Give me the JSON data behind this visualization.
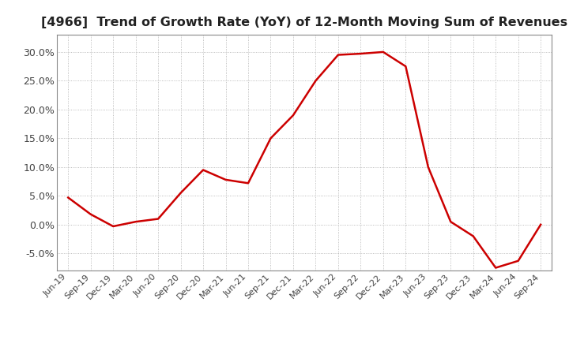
{
  "title": "[4966]  Trend of Growth Rate (YoY) of 12-Month Moving Sum of Revenues",
  "title_fontsize": 11.5,
  "line_color": "#cc0000",
  "background_color": "#ffffff",
  "grid_color": "#aaaaaa",
  "ylim": [
    -0.08,
    0.33
  ],
  "yticks": [
    -0.05,
    0.0,
    0.05,
    0.1,
    0.15,
    0.2,
    0.25,
    0.3
  ],
  "x_labels": [
    "Jun-19",
    "Sep-19",
    "Dec-19",
    "Mar-20",
    "Jun-20",
    "Sep-20",
    "Dec-20",
    "Mar-21",
    "Jun-21",
    "Sep-21",
    "Dec-21",
    "Mar-22",
    "Jun-22",
    "Sep-22",
    "Dec-22",
    "Mar-23",
    "Jun-23",
    "Sep-23",
    "Dec-23",
    "Mar-24",
    "Jun-24",
    "Sep-24"
  ],
  "y_values": [
    0.047,
    0.018,
    -0.003,
    0.005,
    0.01,
    0.055,
    0.095,
    0.078,
    0.072,
    0.15,
    0.19,
    0.25,
    0.295,
    0.297,
    0.3,
    0.275,
    0.1,
    0.005,
    -0.02,
    -0.075,
    -0.063,
    0.0
  ]
}
